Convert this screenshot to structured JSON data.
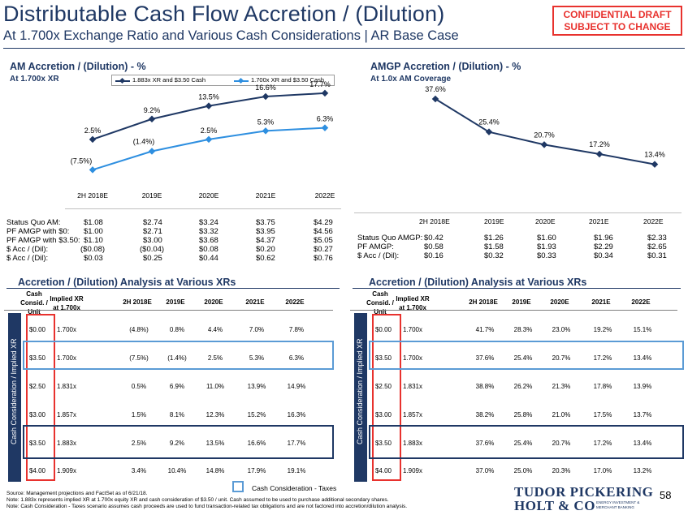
{
  "header": {
    "title": "Distributable Cash Flow Accretion / (Dilution)",
    "subtitle": "At 1.700x Exchange Ratio and Various Cash Considerations | AR Base Case",
    "confidential_line1": "CONFIDENTIAL DRAFT",
    "confidential_line2": "SUBJECT TO CHANGE"
  },
  "left_chart_section": {
    "title": "AM Accretion / (Dilution) - %",
    "subtitle": "At 1.700x XR"
  },
  "right_chart_section": {
    "title": "AMGP Accretion / (Dilution) - %",
    "subtitle": "At 1.0x AM Coverage"
  },
  "chart_data": [
    {
      "type": "line",
      "title": "AM Accretion / (Dilution) - %",
      "categories": [
        "2H 2018E",
        "2019E",
        "2020E",
        "2021E",
        "2022E"
      ],
      "series": [
        {
          "name": "1.883x XR and $3.50 Cash",
          "values": [
            2.5,
            9.2,
            13.5,
            16.6,
            17.7
          ],
          "labels": [
            "2.5%",
            "9.2%",
            "13.5%",
            "16.6%",
            "17.7%"
          ],
          "color": "#1f3864"
        },
        {
          "name": "1.700x XR and $3.50 Cash",
          "values": [
            -7.5,
            -1.4,
            2.5,
            5.3,
            6.3
          ],
          "labels": [
            "(7.5%)",
            "(1.4%)",
            "2.5%",
            "5.3%",
            "6.3%"
          ],
          "color": "#2e8fe0"
        }
      ],
      "ylim": [
        -9,
        19
      ],
      "grid": false,
      "legend": "top"
    },
    {
      "type": "line",
      "title": "AMGP Accretion / (Dilution) - %",
      "categories": [
        "2H 2018E",
        "2019E",
        "2020E",
        "2021E",
        "2022E"
      ],
      "series": [
        {
          "values": [
            37.6,
            25.4,
            20.7,
            17.2,
            13.4
          ],
          "labels": [
            "37.6%",
            "25.4%",
            "20.7%",
            "17.2%",
            "13.4%"
          ],
          "color": "#1f3864"
        }
      ],
      "ylim": [
        10,
        40
      ],
      "grid": false
    }
  ],
  "am_summary": {
    "rows": [
      {
        "label": "Status Quo AM:",
        "values": [
          "$1.08",
          "$2.74",
          "$3.24",
          "$3.75",
          "$4.29"
        ]
      },
      {
        "label": "PF AMGP with $0:",
        "values": [
          "$1.00",
          "$2.71",
          "$3.32",
          "$3.95",
          "$4.56"
        ]
      },
      {
        "label": "PF AMGP with $3.50:",
        "values": [
          "$1.10",
          "$3.00",
          "$3.68",
          "$4.37",
          "$5.05"
        ]
      },
      {
        "label": "$ Acc / (Dil):",
        "values": [
          "($0.08)",
          "($0.04)",
          "$0.08",
          "$0.20",
          "$0.27"
        ]
      },
      {
        "label": "$ Acc / (Dil):",
        "values": [
          "$0.03",
          "$0.25",
          "$0.44",
          "$0.62",
          "$0.76"
        ]
      }
    ]
  },
  "amgp_summary": {
    "headers": [
      "2H 2018E",
      "2019E",
      "2020E",
      "2021E",
      "2022E"
    ],
    "rows": [
      {
        "label": "Status Quo AMGP:",
        "values": [
          "$0.42",
          "$1.26",
          "$1.60",
          "$1.96",
          "$2.33"
        ]
      },
      {
        "label": "PF AMGP:",
        "values": [
          "$0.58",
          "$1.58",
          "$1.93",
          "$2.29",
          "$2.65"
        ]
      },
      {
        "label": "$ Acc / (Dil):",
        "values": [
          "$0.16",
          "$0.32",
          "$0.33",
          "$0.34",
          "$0.31"
        ]
      }
    ]
  },
  "left_grid": {
    "title": "Accretion / (Dilution) Analysis at Various XRs",
    "col1_header": "Cash Consid. / Unit",
    "col2_header": "Implied XR at 1.700x",
    "year_headers": [
      "2H 2018E",
      "2019E",
      "2020E",
      "2021E",
      "2022E"
    ],
    "side_label": "Cash Consideration / Implied XR",
    "rows": [
      {
        "cash": "$0.00",
        "xr": "1.700x",
        "values": [
          "(4.8%)",
          "0.8%",
          "4.4%",
          "7.0%",
          "7.8%"
        ]
      },
      {
        "cash": "$3.50",
        "xr": "1.700x",
        "values": [
          "(7.5%)",
          "(1.4%)",
          "2.5%",
          "5.3%",
          "6.3%"
        ]
      },
      {
        "cash": "$2.50",
        "xr": "1.831x",
        "values": [
          "0.5%",
          "6.9%",
          "11.0%",
          "13.9%",
          "14.9%"
        ]
      },
      {
        "cash": "$3.00",
        "xr": "1.857x",
        "values": [
          "1.5%",
          "8.1%",
          "12.3%",
          "15.2%",
          "16.3%"
        ]
      },
      {
        "cash": "$3.50",
        "xr": "1.883x",
        "values": [
          "2.5%",
          "9.2%",
          "13.5%",
          "16.6%",
          "17.7%"
        ]
      },
      {
        "cash": "$4.00",
        "xr": "1.909x",
        "values": [
          "3.4%",
          "10.4%",
          "14.8%",
          "17.9%",
          "19.1%"
        ]
      }
    ]
  },
  "right_grid": {
    "title": "Accretion / (Dilution) Analysis at Various XRs",
    "col1_header": "Cash Consid. / Unit",
    "col2_header": "Implied XR at 1.700x",
    "year_headers": [
      "2H 2018E",
      "2019E",
      "2020E",
      "2021E",
      "2022E"
    ],
    "side_label": "Cash Consideration / Implied XR",
    "rows": [
      {
        "cash": "$0.00",
        "xr": "1.700x",
        "values": [
          "41.7%",
          "28.3%",
          "23.0%",
          "19.2%",
          "15.1%"
        ]
      },
      {
        "cash": "$3.50",
        "xr": "1.700x",
        "values": [
          "37.6%",
          "25.4%",
          "20.7%",
          "17.2%",
          "13.4%"
        ]
      },
      {
        "cash": "$2.50",
        "xr": "1.831x",
        "values": [
          "38.8%",
          "26.2%",
          "21.3%",
          "17.8%",
          "13.9%"
        ]
      },
      {
        "cash": "$3.00",
        "xr": "1.857x",
        "values": [
          "38.2%",
          "25.8%",
          "21.0%",
          "17.5%",
          "13.7%"
        ]
      },
      {
        "cash": "$3.50",
        "xr": "1.883x",
        "values": [
          "37.6%",
          "25.4%",
          "20.7%",
          "17.2%",
          "13.4%"
        ]
      },
      {
        "cash": "$4.00",
        "xr": "1.909x",
        "values": [
          "37.0%",
          "25.0%",
          "20.3%",
          "17.0%",
          "13.2%"
        ]
      }
    ]
  },
  "legend_bottom": {
    "label": "Cash Consideration - Taxes",
    "color": "#5b9bd5"
  },
  "footnotes": {
    "source": "Source: Management projections and FactSet as of 6/21/18.",
    "note1": "Note: 1.883x represents implied XR at 1.700x equity XR and cash consideration of $3.50 / unit. Cash assumed to be used to purchase additional secondary shares.",
    "note2": "Note: Cash Consideration - Taxes scenario assumes cash proceeds are used to fund transaction-related tax obligations and are not factored into accretion/dilution analysis."
  },
  "branding": {
    "logo_line1": "TUDOR PICKERING",
    "logo_line2": "HOLT & CO",
    "tagline1": "ENERGY INVESTMENT &",
    "tagline2": "MERCHANT BANKING",
    "page_number": "58"
  },
  "colors": {
    "navy": "#1f3864",
    "accent_blue": "#2e8fe0",
    "red": "#e8322e",
    "light_blue": "#5b9bd5"
  }
}
